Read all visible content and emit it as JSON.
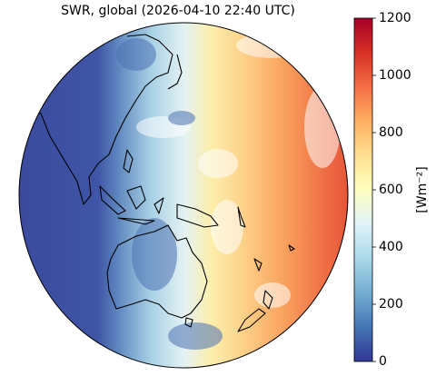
{
  "map": {
    "title": "SWR, global (2026-04-10 22:40 UTC)",
    "colorbar": {
      "label": "[Wm⁻²]",
      "lim": [
        0,
        1200
      ],
      "ticks": [
        0,
        200,
        400,
        600,
        800,
        1000,
        1200
      ]
    }
  }
}
